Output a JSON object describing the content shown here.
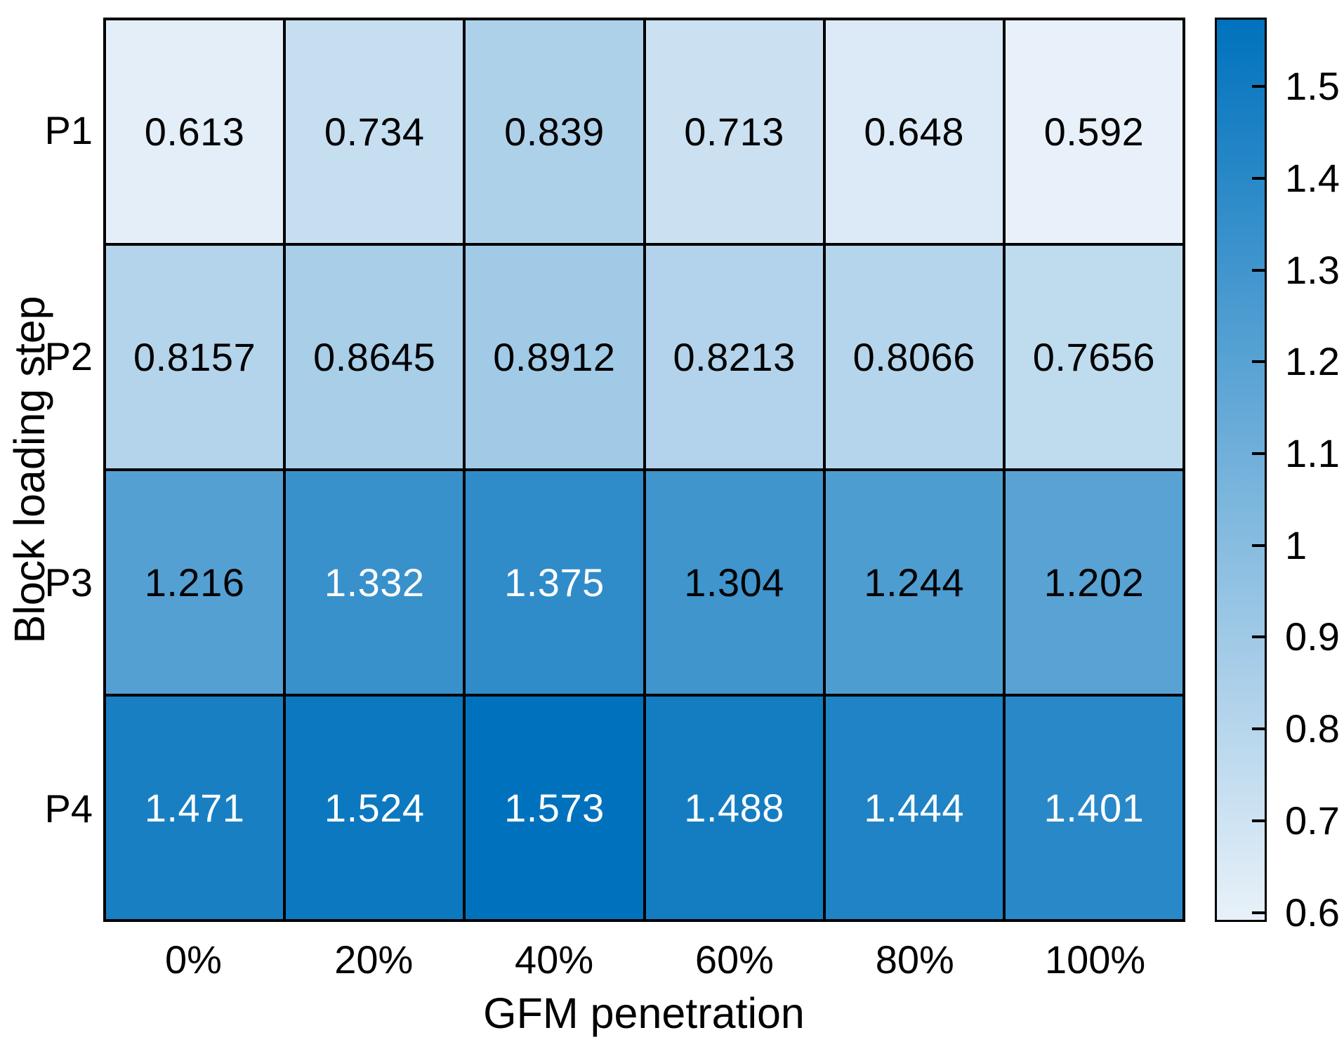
{
  "chart_data": {
    "type": "heatmap",
    "title": "",
    "xlabel": "GFM penetration",
    "ylabel": "Block loading step",
    "x_categories": [
      "0%",
      "20%",
      "40%",
      "60%",
      "80%",
      "100%"
    ],
    "y_categories": [
      "P1",
      "P2",
      "P3",
      "P4"
    ],
    "values": [
      [
        0.613,
        0.734,
        0.839,
        0.713,
        0.648,
        0.592
      ],
      [
        0.8157,
        0.8645,
        0.8912,
        0.8213,
        0.8066,
        0.7656
      ],
      [
        1.216,
        1.332,
        1.375,
        1.304,
        1.244,
        1.202
      ],
      [
        1.471,
        1.524,
        1.573,
        1.488,
        1.444,
        1.401
      ]
    ],
    "cell_labels": [
      [
        "0.613",
        "0.734",
        "0.839",
        "0.713",
        "0.648",
        "0.592"
      ],
      [
        "0.8157",
        "0.8645",
        "0.8912",
        "0.8213",
        "0.8066",
        "0.7656"
      ],
      [
        "1.216",
        "1.332",
        "1.375",
        "1.304",
        "1.244",
        "1.202"
      ],
      [
        "1.471",
        "1.524",
        "1.573",
        "1.488",
        "1.444",
        "1.401"
      ]
    ],
    "cell_text_white": [
      [
        false,
        false,
        false,
        false,
        false,
        false
      ],
      [
        false,
        false,
        false,
        false,
        false,
        false
      ],
      [
        false,
        true,
        true,
        false,
        false,
        false
      ],
      [
        true,
        true,
        true,
        true,
        true,
        true
      ]
    ],
    "colorbar": {
      "position": "right",
      "vmin": 0.592,
      "vmax": 1.573,
      "tick_labels": [
        "1.5",
        "1.4",
        "1.3",
        "1.2",
        "1.1",
        "1",
        "0.9",
        "0.8",
        "0.7",
        "0.6"
      ],
      "tick_values": [
        1.5,
        1.4,
        1.3,
        1.2,
        1.1,
        1.0,
        0.9,
        0.8,
        0.7,
        0.6
      ]
    },
    "colors": {
      "colormap_min": "#e8f1f9",
      "colormap_max": "#0072bd",
      "grid_line": "#000000",
      "text_dark": "#000000",
      "text_light": "#ffffff",
      "background": "#ffffff"
    },
    "grid": "on",
    "xlim_categories": 6,
    "ylim_categories": 4
  }
}
